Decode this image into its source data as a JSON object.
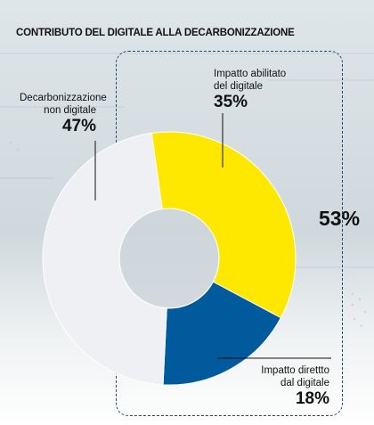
{
  "title": "CONTRIBUTO DEL DIGITALE ALLA DECARBONIZZAZIONE",
  "total_label": "53%",
  "segments": [
    {
      "label_line1": "Impatto abilitato",
      "label_line2": "del digitale",
      "pct": "35%"
    },
    {
      "label_line1": "Impatto direttto",
      "label_line2": "dal digitale",
      "pct": "18%"
    },
    {
      "label_line1": "Decarbonizzazione",
      "label_line2": "non digitale",
      "pct": "47%"
    }
  ],
  "colors": {
    "enabled": "#FFE800",
    "direct": "#005A9C",
    "non_digital": "#EEF0F3"
  },
  "chart_data": {
    "type": "pie",
    "title": "CONTRIBUTO DEL DIGITALE ALLA DECARBONIZZAZIONE",
    "categories": [
      "Impatto abilitato del digitale",
      "Impatto direttto dal digitale",
      "Decarbonizzazione non digitale"
    ],
    "values": [
      35,
      18,
      47
    ],
    "unit": "%",
    "donut": true,
    "group_total": {
      "categories": [
        "Impatto abilitato del digitale",
        "Impatto direttto dal digitale"
      ],
      "value": 53
    }
  }
}
